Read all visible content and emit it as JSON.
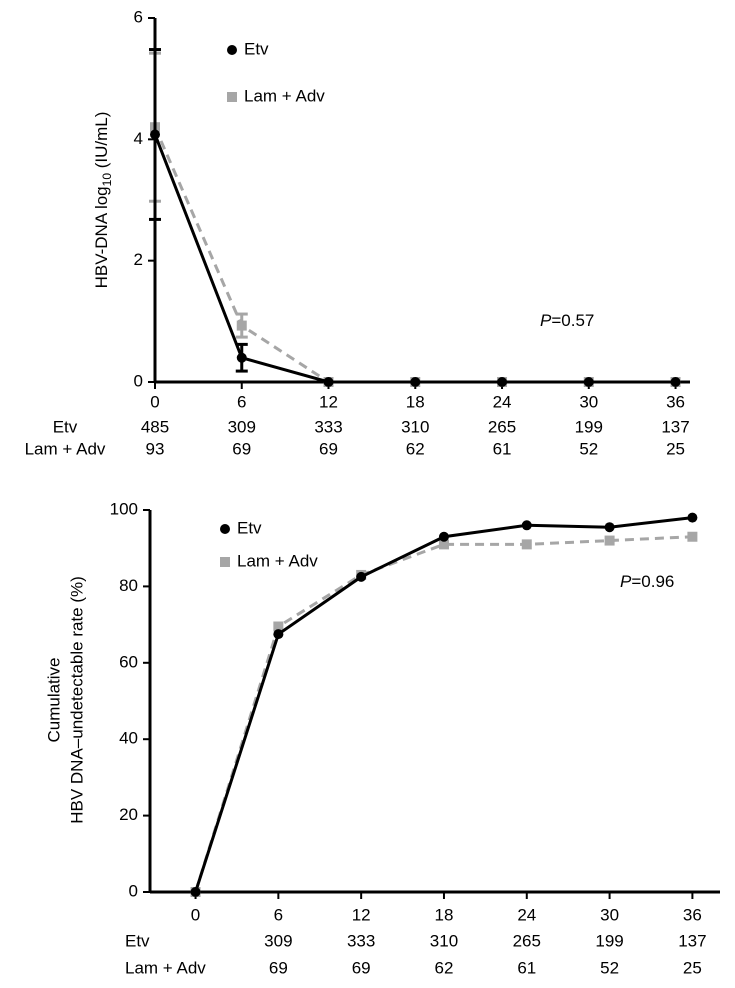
{
  "chart_data": [
    {
      "type": "line",
      "ylabel": [
        "HBV-DNA  log",
        "10",
        " (IU/mL)"
      ],
      "x": [
        0,
        6,
        12,
        18,
        24,
        30,
        36
      ],
      "xlim": [
        0,
        37
      ],
      "xticks": [
        0,
        6,
        12,
        18,
        24,
        30,
        36
      ],
      "ylim": [
        0,
        6
      ],
      "yticks": [
        0,
        2,
        4,
        6
      ],
      "legend": "top-left",
      "series": [
        {
          "name": "Etv",
          "color": "#000000",
          "marker": "circle",
          "dashed": false,
          "values": [
            4.08,
            0.4,
            0,
            0,
            0,
            0,
            0
          ],
          "errors": [
            1.4,
            0.22,
            null,
            null,
            null,
            null,
            null
          ]
        },
        {
          "name": "Lam + Adv",
          "color": "#a6a6a6",
          "marker": "square",
          "dashed": true,
          "values": [
            4.2,
            0.93,
            0,
            0,
            0,
            0,
            0
          ],
          "errors": [
            1.22,
            0.19,
            null,
            null,
            null,
            null,
            null
          ]
        }
      ],
      "annotation": [
        "P",
        "=0.57"
      ],
      "at_risk": [
        {
          "label": "Etv",
          "values": [
            "485",
            "309",
            "333",
            "310",
            "265",
            "199",
            "137"
          ]
        },
        {
          "label": "Lam + Adv",
          "values": [
            "93",
            "69",
            "69",
            "62",
            "61",
            "52",
            "25"
          ]
        }
      ]
    },
    {
      "type": "line",
      "ylabel": [
        "Cumulative",
        "HBV DNA–undetectable rate (%)"
      ],
      "x": [
        0,
        6,
        12,
        18,
        24,
        30,
        36
      ],
      "xlim": [
        -3.3,
        38
      ],
      "xticks": [
        0,
        6,
        12,
        18,
        24,
        30,
        36
      ],
      "ylim": [
        0,
        100
      ],
      "yticks": [
        0,
        20,
        40,
        60,
        80,
        100
      ],
      "legend": "top-left",
      "series": [
        {
          "name": "Etv",
          "color": "#000000",
          "marker": "circle",
          "dashed": false,
          "values": [
            0,
            67.5,
            82.5,
            93,
            96,
            95.5,
            98
          ]
        },
        {
          "name": "Lam + Adv",
          "color": "#a6a6a6",
          "marker": "square",
          "dashed": true,
          "values": [
            0,
            69.5,
            83,
            91,
            91,
            92,
            93
          ]
        }
      ],
      "annotation": [
        "P",
        "=0.96"
      ],
      "at_risk": [
        {
          "label": "Etv",
          "values": [
            null,
            "309",
            "333",
            "310",
            "265",
            "199",
            "137"
          ]
        },
        {
          "label": "Lam + Adv",
          "values": [
            null,
            "69",
            "69",
            "62",
            "61",
            "52",
            "25"
          ]
        }
      ]
    }
  ]
}
